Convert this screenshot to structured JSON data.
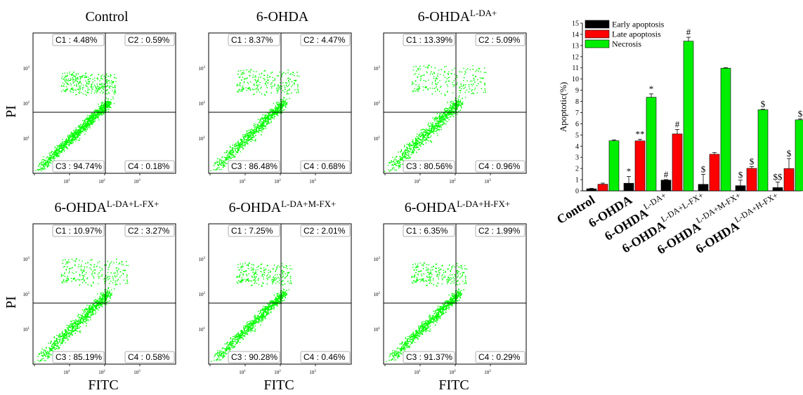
{
  "flow_panels": [
    {
      "title": "Control",
      "title_sup": "",
      "quadrants": [
        "C1 : 4.48%",
        "C2 : 0.59%",
        "C3 : 94.74%",
        "C4 : 0.18%"
      ]
    },
    {
      "title": "6-OHDA",
      "title_sup": "",
      "quadrants": [
        "C1 : 8.37%",
        "C2 : 4.47%",
        "C3 : 86.48%",
        "C4 : 0.68%"
      ]
    },
    {
      "title": "6-OHDA",
      "title_sup": "L-DA+",
      "quadrants": [
        "C1 : 13.39%",
        "C2 : 5.09%",
        "C3 : 80.56%",
        "C4 : 0.96%"
      ]
    },
    {
      "title": "6-OHDA",
      "title_sup": "L-DA+L-FX+",
      "quadrants": [
        "C1 : 10.97%",
        "C2 : 3.27%",
        "C3 : 85.19%",
        "C4 : 0.58%"
      ]
    },
    {
      "title": "6-OHDA",
      "title_sup": "L-DA+M-FX+",
      "quadrants": [
        "C1 : 7.25%",
        "C2 : 2.01%",
        "C3 : 90.28%",
        "C4 : 0.46%"
      ]
    },
    {
      "title": "6-OHDA",
      "title_sup": "L-DA+H-FX+",
      "quadrants": [
        "C1 : 6.35%",
        "C2 : 1.99%",
        "C3 : 91.37%",
        "C4 : 0.29%"
      ]
    }
  ],
  "flow_axes": {
    "xlabel": "FITC",
    "ylabel": "PI",
    "x_ticks": [
      "10",
      "10",
      "10",
      "10"
    ],
    "x_tick_exp": [
      "0",
      "1",
      "2",
      "3"
    ],
    "y_ticks": [
      "10",
      "10",
      "10",
      "10"
    ],
    "y_tick_exp": [
      "0",
      "1",
      "2",
      "3"
    ],
    "dot_color": "#00ff00"
  },
  "chart_data": {
    "type": "bar",
    "ylabel": "Apoptotic(%)",
    "ylim": [
      0,
      15
    ],
    "yticks": [
      0,
      1,
      2,
      3,
      4,
      5,
      6,
      7,
      8,
      9,
      10,
      11,
      12,
      13,
      14,
      15
    ],
    "categories": [
      {
        "main": "Control",
        "sup": ""
      },
      {
        "main": "6-OHDA",
        "sup": ""
      },
      {
        "main": "6-OHDA",
        "sup": "L-DA+"
      },
      {
        "main": "6-OHDA",
        "sup": "L-DA+L-FX+"
      },
      {
        "main": "6-OHDA",
        "sup": "L-DA+M-FX+"
      },
      {
        "main": "6-OHDA",
        "sup": "L-DA+H-FX+"
      }
    ],
    "series": [
      {
        "name": "Early apoptosis",
        "color": "#000000",
        "values": [
          0.18,
          0.68,
          0.96,
          0.58,
          0.46,
          0.29
        ],
        "errors": [
          0.05,
          0.6,
          0.05,
          0.9,
          0.5,
          0.5
        ],
        "marks": [
          "",
          "*",
          "#",
          "$",
          "$",
          "$$"
        ]
      },
      {
        "name": "Late apoptosis",
        "color": "#ff0000",
        "values": [
          0.59,
          4.47,
          5.09,
          3.27,
          2.01,
          1.99
        ],
        "errors": [
          0.1,
          0.15,
          0.4,
          0.15,
          0.15,
          0.9
        ],
        "marks": [
          "",
          "**",
          "#",
          "",
          "$",
          "$"
        ]
      },
      {
        "name": "Necrosis",
        "color": "#00ee00",
        "values": [
          4.48,
          8.37,
          13.39,
          10.97,
          7.25,
          6.35
        ],
        "errors": [
          0.08,
          0.3,
          0.35,
          0.05,
          0.05,
          0.08
        ],
        "marks": [
          "",
          "*",
          "#",
          "",
          "$",
          "$"
        ]
      }
    ],
    "legend_position": "top-left"
  }
}
